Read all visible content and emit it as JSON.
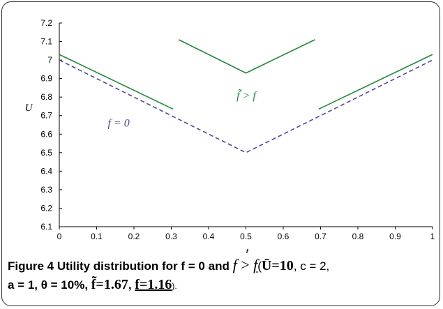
{
  "chart_data": {
    "type": "line",
    "xlabel": "t",
    "ylabel": "U",
    "xlim": [
      0,
      1
    ],
    "ylim": [
      6.1,
      7.2
    ],
    "x_ticks": [
      "0",
      "0.1",
      "0.2",
      "0.3",
      "0.4",
      "0.5",
      "0.6",
      "0.7",
      "0.8",
      "0.9",
      "1"
    ],
    "y_ticks": [
      "6.1",
      "6.2",
      "6.3",
      "6.4",
      "6.5",
      "6.6",
      "6.7",
      "6.8",
      "6.9",
      "7",
      "7.1",
      "7.2"
    ],
    "series": [
      {
        "name": "f = 0",
        "color": "#4a4aa0",
        "style": "dashed",
        "segments": [
          {
            "x": [
              0,
              0.5,
              1
            ],
            "y": [
              7.0,
              6.5,
              7.0
            ]
          }
        ]
      },
      {
        "name": "f̃ > f",
        "color": "#1f8a3a",
        "style": "solid",
        "segments": [
          {
            "x": [
              0,
              0.305
            ],
            "y": [
              7.03,
              6.735
            ]
          },
          {
            "x": [
              0.32,
              0.5,
              0.685
            ],
            "y": [
              7.11,
              6.93,
              7.11
            ]
          },
          {
            "x": [
              0.695,
              1
            ],
            "y": [
              6.735,
              7.03
            ]
          }
        ]
      }
    ],
    "annotations": [
      {
        "text": "f = 0",
        "color": "#4a4aa0"
      },
      {
        "text": "f̃ > f",
        "color": "#1f8a3a"
      }
    ]
  },
  "caption": {
    "label": "Figure 4",
    "text1": " Utility distribution for ",
    "f_eq_0": "f = 0",
    "and": " and ",
    "f_gt": "f > f",
    "open": "(",
    "ubar": "Ū=10",
    "c": ", c = 2,",
    "params": "a = 1, θ = 10%, ",
    "ftilde": "f̃=1.67",
    "comma": ", ",
    "funder": "f=1.16",
    "close": ")."
  }
}
